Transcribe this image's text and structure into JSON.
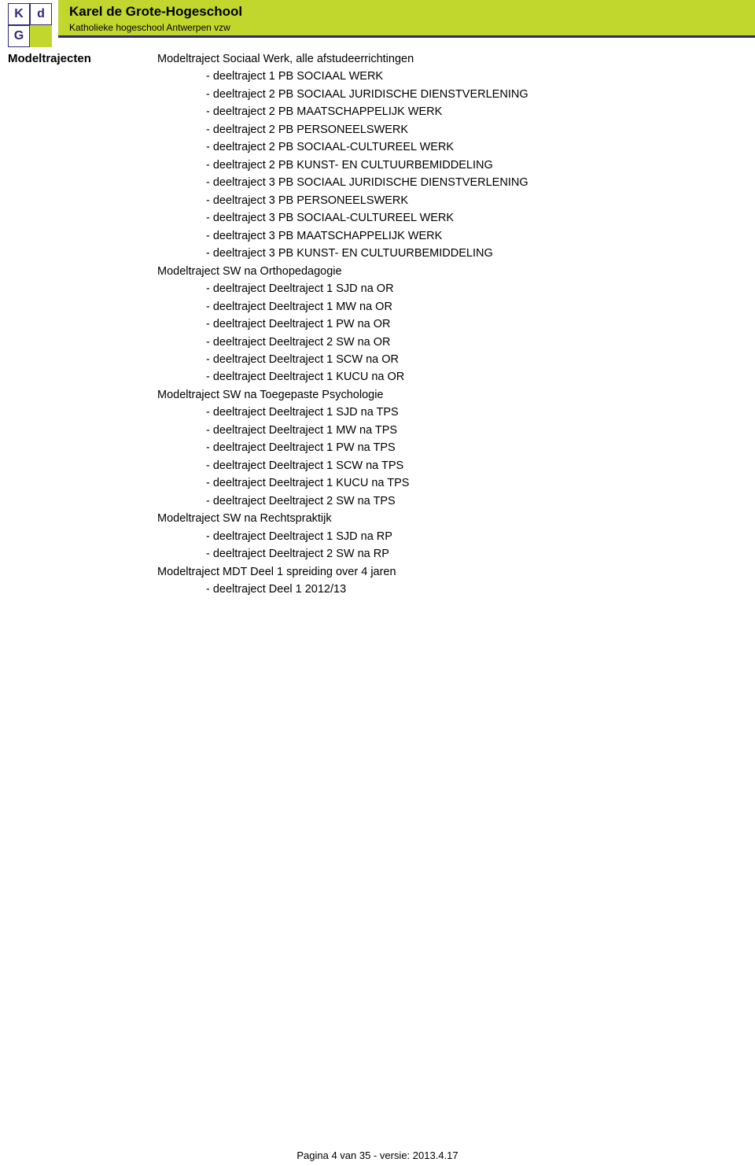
{
  "logo": {
    "tl": "K",
    "tr": "d",
    "bl": "G",
    "br": ""
  },
  "header": {
    "title": "Karel de Grote-Hogeschool",
    "subtitle": "Katholieke hogeschool Antwerpen vzw"
  },
  "label": "Modeltrajecten",
  "sections": [
    {
      "title": "Modeltraject Sociaal Werk, alle afstudeerrichtingen",
      "items": [
        "- deeltraject 1 PB SOCIAAL WERK",
        "- deeltraject 2 PB SOCIAAL JURIDISCHE DIENSTVERLENING",
        "- deeltraject 2 PB MAATSCHAPPELIJK WERK",
        "- deeltraject 2 PB PERSONEELSWERK",
        "- deeltraject 2 PB SOCIAAL-CULTUREEL WERK",
        "- deeltraject 2 PB KUNST- EN CULTUURBEMIDDELING",
        "- deeltraject 3 PB SOCIAAL JURIDISCHE DIENSTVERLENING",
        "- deeltraject 3 PB PERSONEELSWERK",
        "- deeltraject 3 PB SOCIAAL-CULTUREEL WERK",
        "- deeltraject 3 PB MAATSCHAPPELIJK WERK",
        "- deeltraject 3 PB KUNST- EN CULTUURBEMIDDELING"
      ]
    },
    {
      "title": "Modeltraject SW na Orthopedagogie",
      "items": [
        "- deeltraject Deeltraject 1 SJD na OR",
        "- deeltraject Deeltraject 1 MW na OR",
        "- deeltraject Deeltraject 1 PW na OR",
        "- deeltraject Deeltraject 2 SW na OR",
        "- deeltraject Deeltraject 1 SCW na OR",
        "- deeltraject Deeltraject 1 KUCU na OR"
      ]
    },
    {
      "title": "Modeltraject SW na Toegepaste Psychologie",
      "items": [
        "- deeltraject Deeltraject 1 SJD na TPS",
        "- deeltraject Deeltraject 1 MW na TPS",
        "- deeltraject Deeltraject 1 PW na TPS",
        "- deeltraject Deeltraject 1 SCW na TPS",
        "- deeltraject Deeltraject 1 KUCU na TPS",
        "- deeltraject Deeltraject 2 SW na TPS"
      ]
    },
    {
      "title": "Modeltraject SW na Rechtspraktijk",
      "items": [
        "- deeltraject Deeltraject 1 SJD na RP",
        "- deeltraject Deeltraject 2 SW na RP"
      ]
    },
    {
      "title": "Modeltraject MDT Deel 1 spreiding over 4 jaren",
      "items": [
        "- deeltraject Deel 1 2012/13"
      ]
    }
  ],
  "footer": "Pagina 4 van 35   -   versie: 2013.4.17"
}
